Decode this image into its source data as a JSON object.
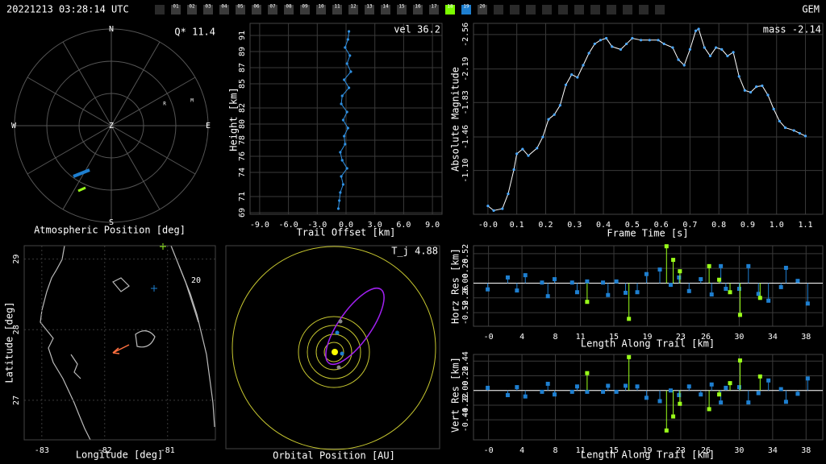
{
  "header": {
    "datetime": "20221213 03:28:14 UTC",
    "shower": "GEM",
    "stations": [
      {
        "label": "01",
        "color": "#3a3a3a"
      },
      {
        "label": "02",
        "color": "#3a3a3a"
      },
      {
        "label": "03",
        "color": "#3a3a3a"
      },
      {
        "label": "04",
        "color": "#3a3a3a"
      },
      {
        "label": "05",
        "color": "#3a3a3a"
      },
      {
        "label": "06",
        "color": "#3a3a3a"
      },
      {
        "label": "07",
        "color": "#3a3a3a"
      },
      {
        "label": "08",
        "color": "#3a3a3a"
      },
      {
        "label": "09",
        "color": "#3a3a3a"
      },
      {
        "label": "10",
        "color": "#3a3a3a"
      },
      {
        "label": "11",
        "color": "#3a3a3a"
      },
      {
        "label": "12",
        "color": "#3a3a3a"
      },
      {
        "label": "13",
        "color": "#3a3a3a"
      },
      {
        "label": "14",
        "color": "#3a3a3a"
      },
      {
        "label": "15",
        "color": "#3a3a3a"
      },
      {
        "label": "16",
        "color": "#3a3a3a"
      },
      {
        "label": "17",
        "color": "#3a3a3a"
      },
      {
        "label": "18",
        "color": "#7cfc00"
      },
      {
        "label": "19",
        "color": "#1e7fd0"
      },
      {
        "label": "20",
        "color": "#3a3a3a"
      }
    ]
  },
  "chart_data": [
    {
      "type": "polar",
      "title": "Atmospheric Position [deg]",
      "annotation": "Q* 11.4",
      "directions": {
        "north": "N",
        "east": "E",
        "south": "S",
        "west": "W",
        "zenith": "Z"
      },
      "markers": [
        "R",
        "M"
      ]
    },
    {
      "type": "line",
      "annotation": "vel 36.2",
      "xlabel": "Trail Offset [km]",
      "ylabel": "Height [km]",
      "color": "#2f8fe0",
      "line_color": "#2f8fe0",
      "grid": true,
      "xlim": [
        -10,
        10
      ],
      "ylim": [
        68.8,
        92.5
      ],
      "xticks": [
        {
          "value": -9,
          "label": "-9.0"
        },
        {
          "value": -6,
          "label": "-6.0"
        },
        {
          "value": -3,
          "label": "-3.0"
        },
        {
          "value": 0,
          "label": "0.0"
        },
        {
          "value": 3,
          "label": "3.0"
        },
        {
          "value": 6,
          "label": "6.0"
        },
        {
          "value": 9,
          "label": "9.0"
        }
      ],
      "yticks": [
        69,
        71,
        74,
        76,
        78,
        80,
        82,
        85,
        87,
        89,
        91
      ],
      "x": [
        -0.8,
        -0.7,
        -0.6,
        -0.3,
        -0.5,
        0.1,
        -0.4,
        -0.6,
        -0.1,
        -0.2,
        0.2,
        -0.3,
        0.1,
        -0.5,
        -0.4,
        0.3,
        -0.2,
        0.5,
        0.1,
        0.4,
        -0.1,
        0.2,
        0.3
      ],
      "values": [
        69.5,
        70.5,
        71.5,
        72.5,
        73.5,
        74.5,
        75.5,
        76.5,
        77.5,
        78.5,
        79.5,
        80.5,
        81.5,
        82.5,
        83.5,
        84.5,
        85.5,
        86.5,
        87.5,
        88.5,
        89.5,
        90.5,
        91.5
      ]
    },
    {
      "type": "line",
      "annotation": "mass -2.14",
      "xlabel": "Frame Time [s]",
      "ylabel": "Absolute Magnitude",
      "color": "#4aa8ff",
      "line_color": "#ffffff",
      "grid": true,
      "xlim": [
        -0.05,
        1.16
      ],
      "ylim": [
        -0.63,
        -2.68
      ],
      "xticks": [
        {
          "value": 0,
          "label": "-0.0"
        },
        0.1,
        0.2,
        0.3,
        0.4,
        0.5,
        0.6,
        0.7,
        0.8,
        0.9,
        {
          "value": 1,
          "label": "1.0"
        },
        1.1
      ],
      "yticks": [
        {
          "value": -1.1,
          "label": "-1.10"
        },
        {
          "value": -1.46,
          "label": "-1.46"
        },
        {
          "value": -1.83,
          "label": "-1.83"
        },
        {
          "value": -2.19,
          "label": "-2.19"
        },
        {
          "value": -2.56,
          "label": "-2.56"
        }
      ],
      "x": [
        0,
        0.02,
        0.05,
        0.07,
        0.09,
        0.1,
        0.12,
        0.14,
        0.17,
        0.19,
        0.21,
        0.23,
        0.25,
        0.27,
        0.29,
        0.31,
        0.33,
        0.35,
        0.37,
        0.39,
        0.41,
        0.43,
        0.46,
        0.48,
        0.5,
        0.53,
        0.56,
        0.59,
        0.61,
        0.64,
        0.66,
        0.68,
        0.7,
        0.72,
        0.73,
        0.75,
        0.77,
        0.79,
        0.81,
        0.83,
        0.85,
        0.87,
        0.89,
        0.91,
        0.93,
        0.95,
        0.97,
        0.99,
        1.01,
        1.03,
        1.06,
        1.08,
        1.1
      ],
      "values": [
        -0.72,
        -0.67,
        -0.69,
        -0.85,
        -1.11,
        -1.28,
        -1.33,
        -1.26,
        -1.34,
        -1.46,
        -1.65,
        -1.7,
        -1.8,
        -2.02,
        -2.13,
        -2.1,
        -2.23,
        -2.36,
        -2.46,
        -2.5,
        -2.52,
        -2.43,
        -2.4,
        -2.46,
        -2.52,
        -2.5,
        -2.5,
        -2.5,
        -2.46,
        -2.42,
        -2.29,
        -2.23,
        -2.4,
        -2.6,
        -2.62,
        -2.42,
        -2.33,
        -2.42,
        -2.4,
        -2.33,
        -2.37,
        -2.11,
        -1.96,
        -1.94,
        -2,
        -2.01,
        -1.91,
        -1.76,
        -1.63,
        -1.56,
        -1.53,
        -1.5,
        -1.47
      ]
    },
    {
      "type": "map",
      "xlabel": "Longitude [deg]",
      "ylabel": "Latitude [deg]",
      "annotation": "20",
      "grid": true,
      "xlim": [
        -83.28,
        -80.24
      ],
      "ylim": [
        26.44,
        29.19
      ],
      "xticks": [
        -83,
        -82,
        -81
      ],
      "yticks": [
        27,
        28,
        29
      ]
    },
    {
      "type": "orbit",
      "title": "Orbital Position [AU]",
      "annotation": "T_j 4.88"
    },
    {
      "type": "stem",
      "xlabel": "Length Along Trail [km]",
      "ylabel": "Horz Res [km]",
      "grid": true,
      "xlim": [
        -1.8,
        40
      ],
      "ylim": [
        -0.76,
        0.66
      ],
      "xticks": [
        {
          "value": 0,
          "label": "-0"
        },
        4,
        8,
        11,
        15,
        19,
        23,
        26,
        30,
        34,
        38
      ],
      "yticks": [
        -0.52,
        -0.26,
        {
          "value": 0,
          "label": "0.00"
        },
        0.26,
        0.52
      ],
      "series": [
        {
          "color": "#1e7fd0",
          "x": [
            -0.1,
            2.3,
            3.4,
            4.4,
            6.4,
            7.1,
            7.9,
            10,
            10.6,
            11.8,
            13.7,
            14.3,
            15.3,
            16.4,
            17.8,
            18.9,
            20.5,
            21.8,
            22.8,
            24,
            25.4,
            26.7,
            27.8,
            28.4,
            30,
            31.1,
            32.3,
            33.5,
            35,
            35.6,
            37,
            38.2
          ],
          "values": [
            -0.11,
            0.1,
            -0.13,
            0.14,
            0.01,
            -0.23,
            0.07,
            0.01,
            -0.16,
            0.03,
            0.01,
            -0.21,
            0.03,
            -0.17,
            -0.16,
            0.16,
            0.24,
            -0.03,
            0.1,
            -0.14,
            0.07,
            -0.2,
            0.3,
            -0.1,
            -0.1,
            0.3,
            -0.19,
            -0.31,
            -0.07,
            0.27,
            0.04,
            -0.36
          ]
        },
        {
          "color": "#9aff1a",
          "x": [
            11.8,
            16.8,
            21.3,
            22.1,
            22.9,
            26.4,
            27.6,
            28.9,
            30.1,
            32.5
          ],
          "values": [
            -0.33,
            -0.63,
            0.65,
            0.41,
            0.21,
            0.3,
            0.06,
            -0.16,
            -0.56,
            -0.26
          ]
        }
      ]
    },
    {
      "type": "stem",
      "xlabel": "Length Along Trail [km]",
      "ylabel": "Vert Res [km]",
      "grid": true,
      "xlim": [
        -1.8,
        40
      ],
      "ylim": [
        -0.74,
        0.54
      ],
      "xticks": [
        {
          "value": 0,
          "label": "-0"
        },
        4,
        8,
        11,
        15,
        19,
        23,
        26,
        30,
        34,
        38
      ],
      "yticks": [
        -0.44,
        -0.22,
        {
          "value": 0,
          "label": "0.00"
        },
        0.22,
        0.44
      ],
      "series": [
        {
          "color": "#1e7fd0",
          "x": [
            -0.1,
            2.3,
            3.4,
            4.4,
            6.4,
            7.1,
            7.9,
            10,
            10.6,
            11.8,
            13.7,
            14.3,
            15.3,
            16.4,
            17.8,
            18.9,
            20.5,
            21.8,
            22.8,
            24,
            25.4,
            26.7,
            27.8,
            28.4,
            30,
            31.1,
            32.3,
            33.5,
            35,
            35.6,
            37,
            38.2
          ],
          "values": [
            0.04,
            -0.07,
            0.05,
            -0.09,
            -0.02,
            0.1,
            -0.06,
            -0.02,
            0.06,
            -0.02,
            -0.02,
            0.07,
            -0.02,
            0.07,
            0.06,
            -0.11,
            -0.16,
            0,
            -0.07,
            0.06,
            -0.06,
            0.09,
            -0.18,
            0.04,
            0.05,
            -0.18,
            -0.04,
            0.15,
            0.02,
            -0.17,
            -0.05,
            0.18
          ]
        },
        {
          "color": "#9aff1a",
          "x": [
            11.8,
            16.8,
            21.3,
            22.1,
            22.9,
            26.4,
            27.6,
            28.9,
            30.1,
            32.5
          ],
          "values": [
            0.26,
            0.5,
            -0.6,
            -0.39,
            -0.2,
            -0.28,
            -0.06,
            0.11,
            0.45,
            0.21
          ]
        }
      ]
    }
  ]
}
